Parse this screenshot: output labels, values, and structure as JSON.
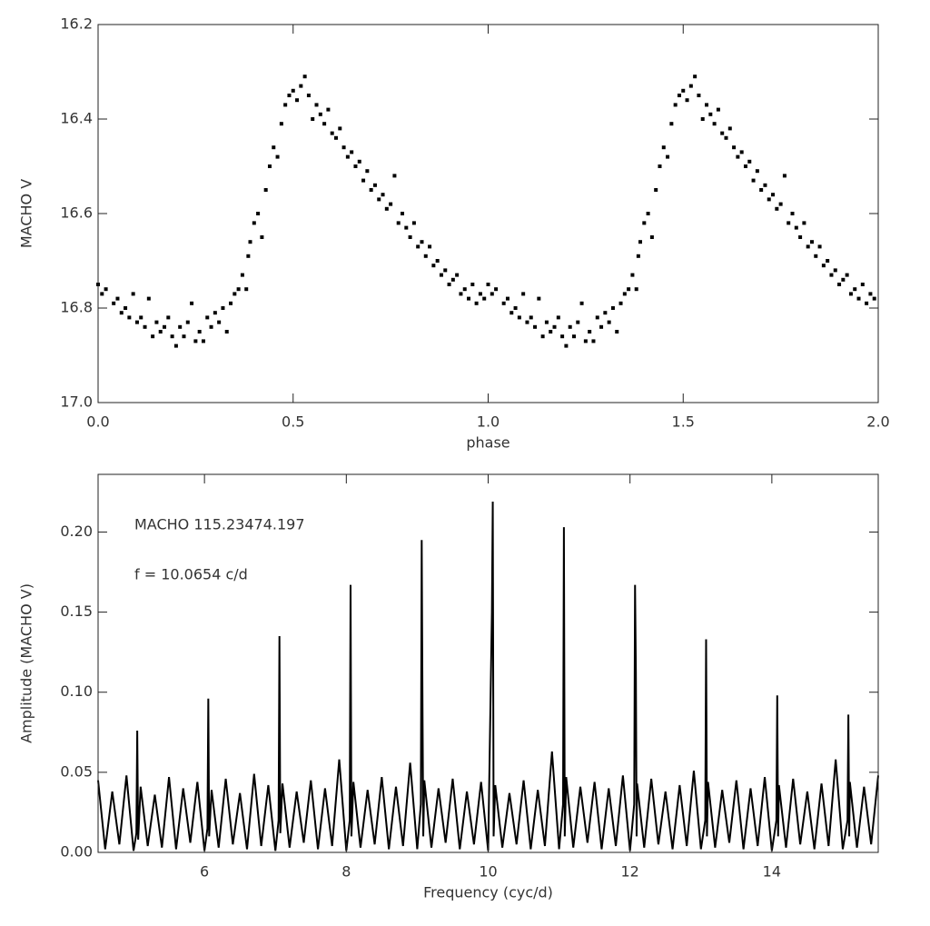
{
  "chart_data": [
    {
      "type": "scatter",
      "x_label": "phase",
      "y_label": "MACHO V",
      "color": "#000000",
      "xlim": [
        0,
        2
      ],
      "ylim": [
        17.0,
        16.2
      ],
      "xticks": [
        {
          "value": 0,
          "label": "0.0"
        },
        0.5,
        {
          "value": 1,
          "label": "1.0"
        },
        1.5,
        {
          "value": 2,
          "label": "2.0"
        }
      ],
      "yticks": [
        16.2,
        16.4,
        16.6,
        16.8,
        {
          "value": 17,
          "label": "17.0"
        }
      ],
      "x": [
        0.0,
        0.01,
        0.02,
        0.04,
        0.05,
        0.06,
        0.07,
        0.08,
        0.09,
        0.1,
        0.11,
        0.12,
        0.13,
        0.14,
        0.15,
        0.16,
        0.17,
        0.18,
        0.19,
        0.2,
        0.21,
        0.22,
        0.23,
        0.24,
        0.25,
        0.26,
        0.27,
        0.28,
        0.29,
        0.3,
        0.31,
        0.32,
        0.33,
        0.34,
        0.35,
        0.36,
        0.37,
        0.38,
        0.385,
        0.39,
        0.4,
        0.41,
        0.42,
        0.43,
        0.44,
        0.45,
        0.46,
        0.47,
        0.48,
        0.49,
        0.5,
        0.51,
        0.52,
        0.53,
        0.54,
        0.55,
        0.56,
        0.57,
        0.58,
        0.59,
        0.6,
        0.61,
        0.62,
        0.63,
        0.64,
        0.65,
        0.66,
        0.67,
        0.68,
        0.69,
        0.7,
        0.71,
        0.72,
        0.73,
        0.74,
        0.75,
        0.76,
        0.77,
        0.78,
        0.79,
        0.8,
        0.81,
        0.82,
        0.83,
        0.84,
        0.85,
        0.86,
        0.87,
        0.88,
        0.89,
        0.9,
        0.91,
        0.92,
        0.93,
        0.94,
        0.95,
        0.96,
        0.97,
        0.98,
        0.99,
        1.0,
        1.01,
        1.02,
        1.04,
        1.05,
        1.06,
        1.07,
        1.08,
        1.09,
        1.1,
        1.11,
        1.12,
        1.13,
        1.14,
        1.15,
        1.16,
        1.17,
        1.18,
        1.19,
        1.2,
        1.21,
        1.22,
        1.23,
        1.24,
        1.25,
        1.26,
        1.27,
        1.28,
        1.29,
        1.3,
        1.31,
        1.32,
        1.33,
        1.34,
        1.35,
        1.36,
        1.37,
        1.38,
        1.385,
        1.39,
        1.4,
        1.41,
        1.42,
        1.43,
        1.44,
        1.45,
        1.46,
        1.47,
        1.48,
        1.49,
        1.5,
        1.51,
        1.52,
        1.53,
        1.54,
        1.55,
        1.56,
        1.57,
        1.58,
        1.59,
        1.6,
        1.61,
        1.62,
        1.63,
        1.64,
        1.65,
        1.66,
        1.67,
        1.68,
        1.69,
        1.7,
        1.71,
        1.72,
        1.73,
        1.74,
        1.75,
        1.76,
        1.77,
        1.78,
        1.79,
        1.8,
        1.81,
        1.82,
        1.83,
        1.84,
        1.85,
        1.86,
        1.87,
        1.88,
        1.89,
        1.9,
        1.91,
        1.92,
        1.93,
        1.94,
        1.95,
        1.96,
        1.97,
        1.98,
        1.99
      ],
      "values": [
        16.75,
        16.77,
        16.76,
        16.79,
        16.78,
        16.81,
        16.8,
        16.82,
        16.77,
        16.83,
        16.82,
        16.84,
        16.78,
        16.86,
        16.83,
        16.85,
        16.84,
        16.82,
        16.86,
        16.88,
        16.84,
        16.86,
        16.83,
        16.79,
        16.87,
        16.85,
        16.87,
        16.82,
        16.84,
        16.81,
        16.83,
        16.8,
        16.85,
        16.79,
        16.77,
        16.76,
        16.73,
        16.76,
        16.69,
        16.66,
        16.62,
        16.6,
        16.65,
        16.55,
        16.5,
        16.46,
        16.48,
        16.41,
        16.37,
        16.35,
        16.34,
        16.36,
        16.33,
        16.31,
        16.35,
        16.4,
        16.37,
        16.39,
        16.41,
        16.38,
        16.43,
        16.44,
        16.42,
        16.46,
        16.48,
        16.47,
        16.5,
        16.49,
        16.53,
        16.51,
        16.55,
        16.54,
        16.57,
        16.56,
        16.59,
        16.58,
        16.52,
        16.62,
        16.6,
        16.63,
        16.65,
        16.62,
        16.67,
        16.66,
        16.69,
        16.67,
        16.71,
        16.7,
        16.73,
        16.72,
        16.75,
        16.74,
        16.73,
        16.77,
        16.76,
        16.78,
        16.75,
        16.79,
        16.77,
        16.78,
        16.75,
        16.77,
        16.76,
        16.79,
        16.78,
        16.81,
        16.8,
        16.82,
        16.77,
        16.83,
        16.82,
        16.84,
        16.78,
        16.86,
        16.83,
        16.85,
        16.84,
        16.82,
        16.86,
        16.88,
        16.84,
        16.86,
        16.83,
        16.79,
        16.87,
        16.85,
        16.87,
        16.82,
        16.84,
        16.81,
        16.83,
        16.8,
        16.85,
        16.79,
        16.77,
        16.76,
        16.73,
        16.76,
        16.69,
        16.66,
        16.62,
        16.6,
        16.65,
        16.55,
        16.5,
        16.46,
        16.48,
        16.41,
        16.37,
        16.35,
        16.34,
        16.36,
        16.33,
        16.31,
        16.35,
        16.4,
        16.37,
        16.39,
        16.41,
        16.38,
        16.43,
        16.44,
        16.42,
        16.46,
        16.48,
        16.47,
        16.5,
        16.49,
        16.53,
        16.51,
        16.55,
        16.54,
        16.57,
        16.56,
        16.59,
        16.58,
        16.52,
        16.62,
        16.6,
        16.63,
        16.65,
        16.62,
        16.67,
        16.66,
        16.69,
        16.67,
        16.71,
        16.7,
        16.73,
        16.72,
        16.75,
        16.74,
        16.73,
        16.77,
        16.76,
        16.78,
        16.75,
        16.79,
        16.77,
        16.78
      ]
    },
    {
      "type": "line",
      "x_label": "Frequency (cyc/d)",
      "y_label": "Amplitude (MACHO V)",
      "color": "#000000",
      "annotations": [
        "MACHO 115.23474.197",
        "f = 10.0654 c/d"
      ],
      "xlim": [
        4.5,
        15.5
      ],
      "ylim": [
        0,
        0.236
      ],
      "xticks": [
        6,
        8,
        10,
        12,
        14
      ],
      "yticks": [
        {
          "value": 0,
          "label": "0.00"
        },
        0.05,
        {
          "value": 0.1,
          "label": "0.10"
        },
        0.15,
        {
          "value": 0.2,
          "label": "0.20"
        }
      ],
      "x": [
        4.5,
        4.6,
        4.7,
        4.8,
        4.9,
        5.0,
        5.04,
        5.052,
        5.065,
        5.1,
        5.2,
        5.3,
        5.4,
        5.5,
        5.6,
        5.7,
        5.8,
        5.9,
        6.0,
        6.042,
        6.054,
        6.066,
        6.1,
        6.2,
        6.3,
        6.4,
        6.5,
        6.6,
        6.7,
        6.8,
        6.9,
        7.0,
        7.045,
        7.057,
        7.069,
        7.1,
        7.2,
        7.3,
        7.4,
        7.5,
        7.6,
        7.7,
        7.8,
        7.9,
        8.0,
        8.048,
        8.06,
        8.072,
        8.1,
        8.2,
        8.3,
        8.4,
        8.5,
        8.6,
        8.7,
        8.8,
        8.9,
        9.0,
        9.051,
        9.063,
        9.075,
        9.085,
        9.1,
        9.2,
        9.3,
        9.4,
        9.5,
        9.6,
        9.7,
        9.8,
        9.9,
        10.0,
        10.053,
        10.065,
        10.077,
        10.1,
        10.2,
        10.3,
        10.4,
        10.5,
        10.6,
        10.7,
        10.8,
        10.9,
        11.0,
        11.056,
        11.068,
        11.08,
        11.1,
        11.2,
        11.3,
        11.4,
        11.5,
        11.6,
        11.7,
        11.8,
        11.9,
        12.0,
        12.059,
        12.071,
        12.083,
        12.093,
        12.1,
        12.2,
        12.3,
        12.4,
        12.5,
        12.6,
        12.7,
        12.8,
        12.9,
        13.0,
        13.061,
        13.073,
        13.085,
        13.1,
        13.2,
        13.3,
        13.4,
        13.5,
        13.6,
        13.7,
        13.8,
        13.9,
        14.0,
        14.064,
        14.076,
        14.088,
        14.1,
        14.2,
        14.3,
        14.4,
        14.5,
        14.6,
        14.7,
        14.8,
        14.9,
        15.0,
        15.067,
        15.079,
        15.091,
        15.1,
        15.2,
        15.3,
        15.4,
        15.5
      ],
      "values": [
        0.045,
        0.002,
        0.038,
        0.005,
        0.048,
        0.001,
        0.012,
        0.076,
        0.008,
        0.041,
        0.004,
        0.036,
        0.003,
        0.047,
        0.002,
        0.04,
        0.006,
        0.044,
        0.001,
        0.015,
        0.096,
        0.01,
        0.039,
        0.003,
        0.046,
        0.005,
        0.037,
        0.002,
        0.049,
        0.004,
        0.042,
        0.001,
        0.02,
        0.135,
        0.012,
        0.043,
        0.003,
        0.038,
        0.006,
        0.045,
        0.002,
        0.04,
        0.004,
        0.058,
        0.001,
        0.02,
        0.167,
        0.01,
        0.044,
        0.003,
        0.039,
        0.005,
        0.047,
        0.002,
        0.041,
        0.004,
        0.056,
        0.002,
        0.03,
        0.195,
        0.085,
        0.01,
        0.045,
        0.003,
        0.04,
        0.006,
        0.046,
        0.002,
        0.038,
        0.005,
        0.044,
        0.001,
        0.15,
        0.219,
        0.01,
        0.042,
        0.003,
        0.037,
        0.005,
        0.045,
        0.002,
        0.039,
        0.004,
        0.063,
        0.002,
        0.03,
        0.203,
        0.01,
        0.047,
        0.003,
        0.041,
        0.006,
        0.044,
        0.002,
        0.04,
        0.004,
        0.048,
        0.001,
        0.03,
        0.167,
        0.112,
        0.01,
        0.043,
        0.003,
        0.046,
        0.005,
        0.038,
        0.002,
        0.042,
        0.004,
        0.051,
        0.002,
        0.02,
        0.133,
        0.01,
        0.044,
        0.003,
        0.039,
        0.006,
        0.045,
        0.002,
        0.04,
        0.004,
        0.047,
        0.001,
        0.02,
        0.098,
        0.01,
        0.042,
        0.003,
        0.046,
        0.005,
        0.038,
        0.002,
        0.043,
        0.004,
        0.058,
        0.002,
        0.02,
        0.086,
        0.01,
        0.044,
        0.003,
        0.041,
        0.005,
        0.048
      ]
    }
  ]
}
